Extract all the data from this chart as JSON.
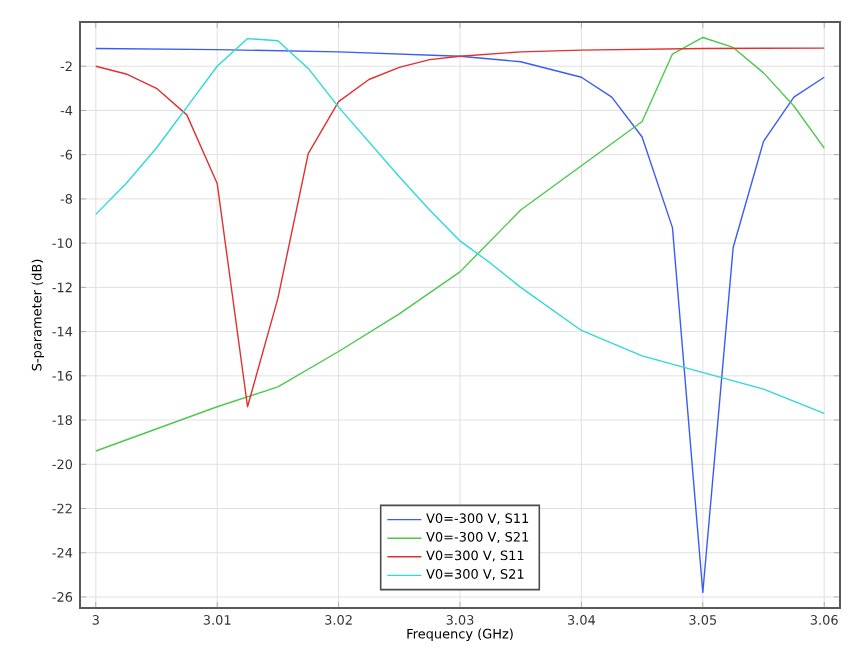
{
  "chart_data": {
    "type": "line",
    "xlabel": "Frequency (GHz)",
    "ylabel": "S-parameter (dB)",
    "xlim": [
      2.9987,
      3.0613
    ],
    "ylim": [
      -26.5,
      0
    ],
    "xticks": [
      3,
      3.01,
      3.02,
      3.03,
      3.04,
      3.05,
      3.06
    ],
    "yticks": [
      -26,
      -24,
      -22,
      -20,
      -18,
      -16,
      -14,
      -12,
      -10,
      -8,
      -6,
      -4,
      -2
    ],
    "grid": true,
    "legend": "bottom",
    "marker": "none",
    "line_style": "solid",
    "series": [
      {
        "name": "V0=-300 V, S11",
        "color": "#3b5bf5",
        "x": [
          3,
          3.01,
          3.02,
          3.025,
          3.03,
          3.035,
          3.04,
          3.0425,
          3.045,
          3.0475,
          3.05,
          3.0525,
          3.055,
          3.0575,
          3.06
        ],
        "values": [
          -1.2,
          -1.25,
          -1.35,
          -1.45,
          -1.55,
          -1.8,
          -2.5,
          -3.4,
          -5.2,
          -9.3,
          -25.8,
          -10.2,
          -5.4,
          -3.4,
          -2.5
        ]
      },
      {
        "name": "V0=-300 V, S21",
        "color": "#4cc84c",
        "x": [
          3,
          3.01,
          3.015,
          3.02,
          3.025,
          3.03,
          3.035,
          3.04,
          3.045,
          3.0475,
          3.05,
          3.0525,
          3.055,
          3.0575,
          3.06
        ],
        "values": [
          -19.4,
          -17.4,
          -16.5,
          -14.9,
          -13.2,
          -11.3,
          -8.5,
          -6.5,
          -4.5,
          -1.45,
          -0.7,
          -1.15,
          -2.3,
          -3.8,
          -5.7
        ]
      },
      {
        "name": "V0=300 V, S11",
        "color": "#e03030",
        "x": [
          3,
          3.0025,
          3.005,
          3.0075,
          3.01,
          3.0125,
          3.015,
          3.0175,
          3.02,
          3.0225,
          3.025,
          3.0275,
          3.03,
          3.035,
          3.04,
          3.05,
          3.06
        ],
        "values": [
          -2.0,
          -2.35,
          -3.0,
          -4.2,
          -7.3,
          -17.4,
          -12.5,
          -5.95,
          -3.6,
          -2.6,
          -2.05,
          -1.7,
          -1.55,
          -1.35,
          -1.27,
          -1.2,
          -1.18
        ]
      },
      {
        "name": "V0=300 V, S21",
        "color": "#30d8d8",
        "x": [
          3,
          3.0025,
          3.005,
          3.0075,
          3.01,
          3.0125,
          3.015,
          3.0175,
          3.02,
          3.025,
          3.0275,
          3.03,
          3.0325,
          3.035,
          3.04,
          3.045,
          3.05,
          3.055,
          3.06
        ],
        "values": [
          -8.7,
          -7.3,
          -5.7,
          -3.85,
          -2.0,
          -0.75,
          -0.85,
          -2.1,
          -3.85,
          -7.0,
          -8.5,
          -9.9,
          -10.9,
          -12.0,
          -13.95,
          -15.1,
          -15.85,
          -16.6,
          -17.7
        ]
      }
    ]
  }
}
